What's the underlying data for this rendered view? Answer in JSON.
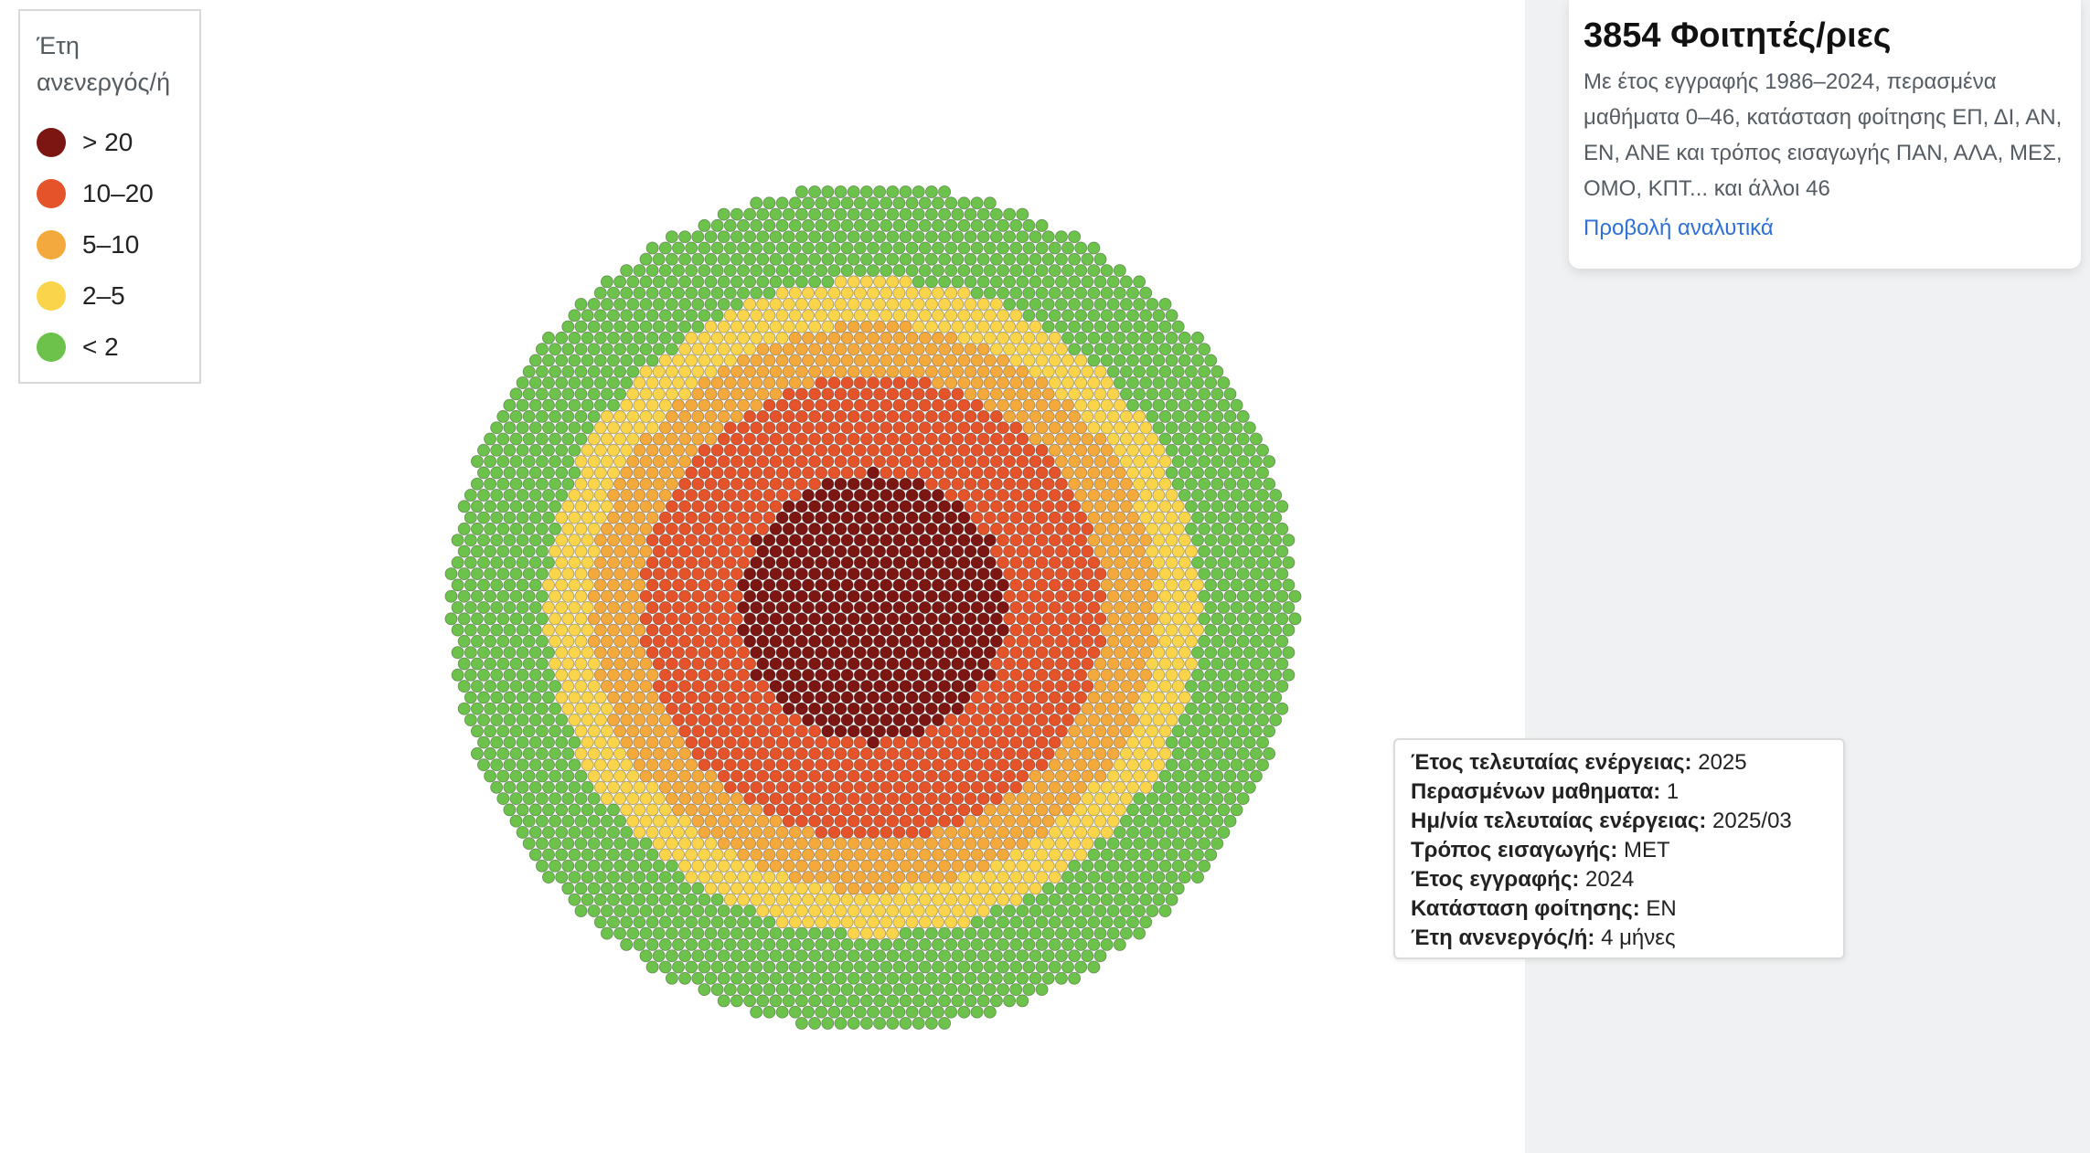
{
  "legend": {
    "title": "Έτη ανενεργός/ή",
    "items": [
      {
        "label": "> 20",
        "color": "#7b1612"
      },
      {
        "label": "10–20",
        "color": "#e4532a"
      },
      {
        "label": "5–10",
        "color": "#f3a93b"
      },
      {
        "label": "2–5",
        "color": "#fad54b"
      },
      {
        "label": "< 2",
        "color": "#6cc24a"
      }
    ]
  },
  "info": {
    "title": "3854 Φοιτητές/ριες",
    "description": "Με έτος εγγραφής 1986–2024, περασμένα μαθήματα 0–46, κατάσταση φοίτησης ΕΠ, ΔΙ, ΑΝ, ΕΝ, ΑΝΕ και τρόπος εισαγωγής ΠΑΝ, ΑΛΑ, ΜΕΣ, ΟΜΟ, ΚΠΤ... και άλλοι 46",
    "link": "Προβολή αναλυτικά"
  },
  "tooltip": {
    "rows": [
      {
        "key": "Έτος τελευταίας ενέργειας:",
        "value": "2025"
      },
      {
        "key": "Περασμένων μαθηματα:",
        "value": "1"
      },
      {
        "key": "Ημ/νία τελευταίας ενέργειας:",
        "value": "2025/03"
      },
      {
        "key": "Τρόπος εισαγωγής:",
        "value": "ΜΕΤ"
      },
      {
        "key": "Έτος εγγραφής:",
        "value": "2024"
      },
      {
        "key": "Κατάσταση φοίτησης:",
        "value": "ΕΝ"
      },
      {
        "key": "Έτη ανενεργός/ή:",
        "value": "4 μήνες"
      }
    ]
  },
  "chart_data": {
    "type": "scatter",
    "title": "3854 Φοιτητές/ριες",
    "total": 3854,
    "series": [
      {
        "name": "> 20",
        "color": "#7b1612",
        "count": 385
      },
      {
        "name": "10–20",
        "color": "#e4532a",
        "count": 771
      },
      {
        "name": "5–10",
        "color": "#f3a93b",
        "count": 578
      },
      {
        "name": "2–5",
        "color": "#fad54b",
        "count": 578
      },
      {
        "name": "< 2",
        "color": "#6cc24a",
        "count": 1542
      }
    ]
  }
}
